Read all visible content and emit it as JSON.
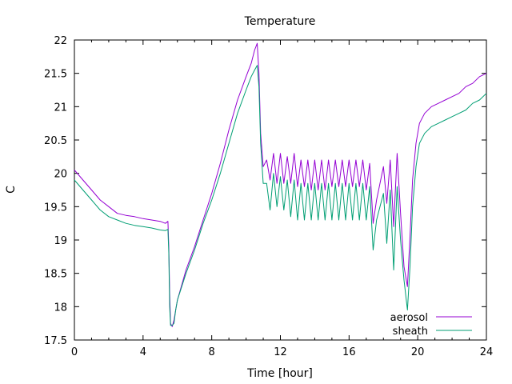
{
  "chart_data": {
    "type": "line",
    "title": "Temperature",
    "xlabel": "Time [hour]",
    "ylabel": "C",
    "xlim": [
      0,
      24
    ],
    "ylim": [
      17.5,
      22
    ],
    "xticks": [
      0,
      4,
      8,
      12,
      16,
      20,
      24
    ],
    "xtick_labels": [
      "0",
      "4",
      "8",
      "12",
      "16",
      "20",
      "24"
    ],
    "yticks": [
      17.5,
      18,
      18.5,
      19,
      19.5,
      20,
      20.5,
      21,
      21.5,
      22
    ],
    "ytick_labels": [
      "17.5",
      "18",
      "18.5",
      "19",
      "19.5",
      "20",
      "20.5",
      "21",
      "21.5",
      "22"
    ],
    "grid": false,
    "legend_position": "bottom-right",
    "series": [
      {
        "name": "aerosol",
        "color": "#9400d3",
        "x": [
          0,
          0.5,
          1,
          1.5,
          2,
          2.5,
          3,
          3.5,
          4,
          4.5,
          5,
          5.3,
          5.45,
          5.5,
          5.55,
          5.6,
          5.7,
          5.8,
          5.9,
          6,
          6.5,
          7,
          7.5,
          8,
          8.5,
          9,
          9.5,
          10,
          10.3,
          10.5,
          10.65,
          10.75,
          10.85,
          11,
          11.2,
          11.4,
          11.6,
          11.8,
          12,
          12.2,
          12.4,
          12.6,
          12.8,
          13,
          13.2,
          13.4,
          13.6,
          13.8,
          14,
          14.2,
          14.4,
          14.6,
          14.8,
          15,
          15.2,
          15.4,
          15.6,
          15.8,
          16,
          16.2,
          16.4,
          16.6,
          16.8,
          17,
          17.2,
          17.4,
          17.6,
          17.8,
          18,
          18.2,
          18.4,
          18.6,
          18.8,
          19,
          19.2,
          19.4,
          19.55,
          19.7,
          19.9,
          20.1,
          20.4,
          20.8,
          21.2,
          21.6,
          22,
          22.4,
          22.8,
          23.2,
          23.6,
          24
        ],
        "y": [
          20.05,
          19.9,
          19.75,
          19.6,
          19.5,
          19.4,
          19.37,
          19.35,
          19.32,
          19.3,
          19.28,
          19.25,
          19.28,
          18.9,
          18.2,
          17.75,
          17.7,
          17.8,
          17.95,
          18.1,
          18.55,
          18.9,
          19.3,
          19.7,
          20.15,
          20.65,
          21.1,
          21.45,
          21.65,
          21.85,
          21.95,
          21.5,
          20.6,
          20.1,
          20.2,
          19.9,
          20.3,
          19.85,
          20.3,
          19.85,
          20.25,
          19.85,
          20.3,
          19.8,
          20.2,
          19.8,
          20.2,
          19.75,
          20.2,
          19.75,
          20.2,
          19.75,
          20.2,
          19.8,
          20.2,
          19.8,
          20.2,
          19.8,
          20.2,
          19.8,
          20.2,
          19.8,
          20.2,
          19.75,
          20.15,
          19.25,
          19.6,
          19.85,
          20.1,
          19.55,
          20.2,
          19.2,
          20.3,
          19.4,
          18.6,
          18.3,
          19.05,
          19.9,
          20.45,
          20.75,
          20.9,
          21.0,
          21.05,
          21.1,
          21.15,
          21.2,
          21.3,
          21.35,
          21.45,
          21.5
        ]
      },
      {
        "name": "sheath",
        "color": "#009e73",
        "x": [
          0,
          0.5,
          1,
          1.5,
          2,
          2.5,
          3,
          3.5,
          4,
          4.5,
          5,
          5.3,
          5.45,
          5.5,
          5.55,
          5.6,
          5.7,
          5.8,
          5.9,
          6,
          6.5,
          7,
          7.5,
          8,
          8.5,
          9,
          9.5,
          10,
          10.3,
          10.5,
          10.65,
          10.75,
          10.85,
          11,
          11.2,
          11.4,
          11.6,
          11.8,
          12,
          12.2,
          12.4,
          12.6,
          12.8,
          13,
          13.2,
          13.4,
          13.6,
          13.8,
          14,
          14.2,
          14.4,
          14.6,
          14.8,
          15,
          15.2,
          15.4,
          15.6,
          15.8,
          16,
          16.2,
          16.4,
          16.6,
          16.8,
          17,
          17.2,
          17.4,
          17.6,
          17.8,
          18,
          18.2,
          18.4,
          18.6,
          18.8,
          19,
          19.2,
          19.4,
          19.55,
          19.7,
          19.9,
          20.1,
          20.4,
          20.8,
          21.2,
          21.6,
          22,
          22.4,
          22.8,
          23.2,
          23.6,
          24
        ],
        "y": [
          19.9,
          19.75,
          19.6,
          19.45,
          19.35,
          19.3,
          19.25,
          19.22,
          19.2,
          19.18,
          19.15,
          19.14,
          19.16,
          18.8,
          18.0,
          17.72,
          17.72,
          17.75,
          17.95,
          18.1,
          18.5,
          18.85,
          19.25,
          19.6,
          20.0,
          20.45,
          20.9,
          21.25,
          21.45,
          21.55,
          21.62,
          21.3,
          20.45,
          19.85,
          19.85,
          19.45,
          20.0,
          19.5,
          19.95,
          19.45,
          19.9,
          19.35,
          19.9,
          19.3,
          19.85,
          19.3,
          19.85,
          19.3,
          19.85,
          19.3,
          19.85,
          19.3,
          19.85,
          19.3,
          19.85,
          19.3,
          19.85,
          19.3,
          19.85,
          19.3,
          19.85,
          19.3,
          19.85,
          19.3,
          19.8,
          18.85,
          19.3,
          19.5,
          19.7,
          18.95,
          19.75,
          18.55,
          19.8,
          19.0,
          18.4,
          17.95,
          18.6,
          19.5,
          20.1,
          20.45,
          20.6,
          20.7,
          20.75,
          20.8,
          20.85,
          20.9,
          20.95,
          21.05,
          21.1,
          21.2
        ]
      }
    ]
  }
}
